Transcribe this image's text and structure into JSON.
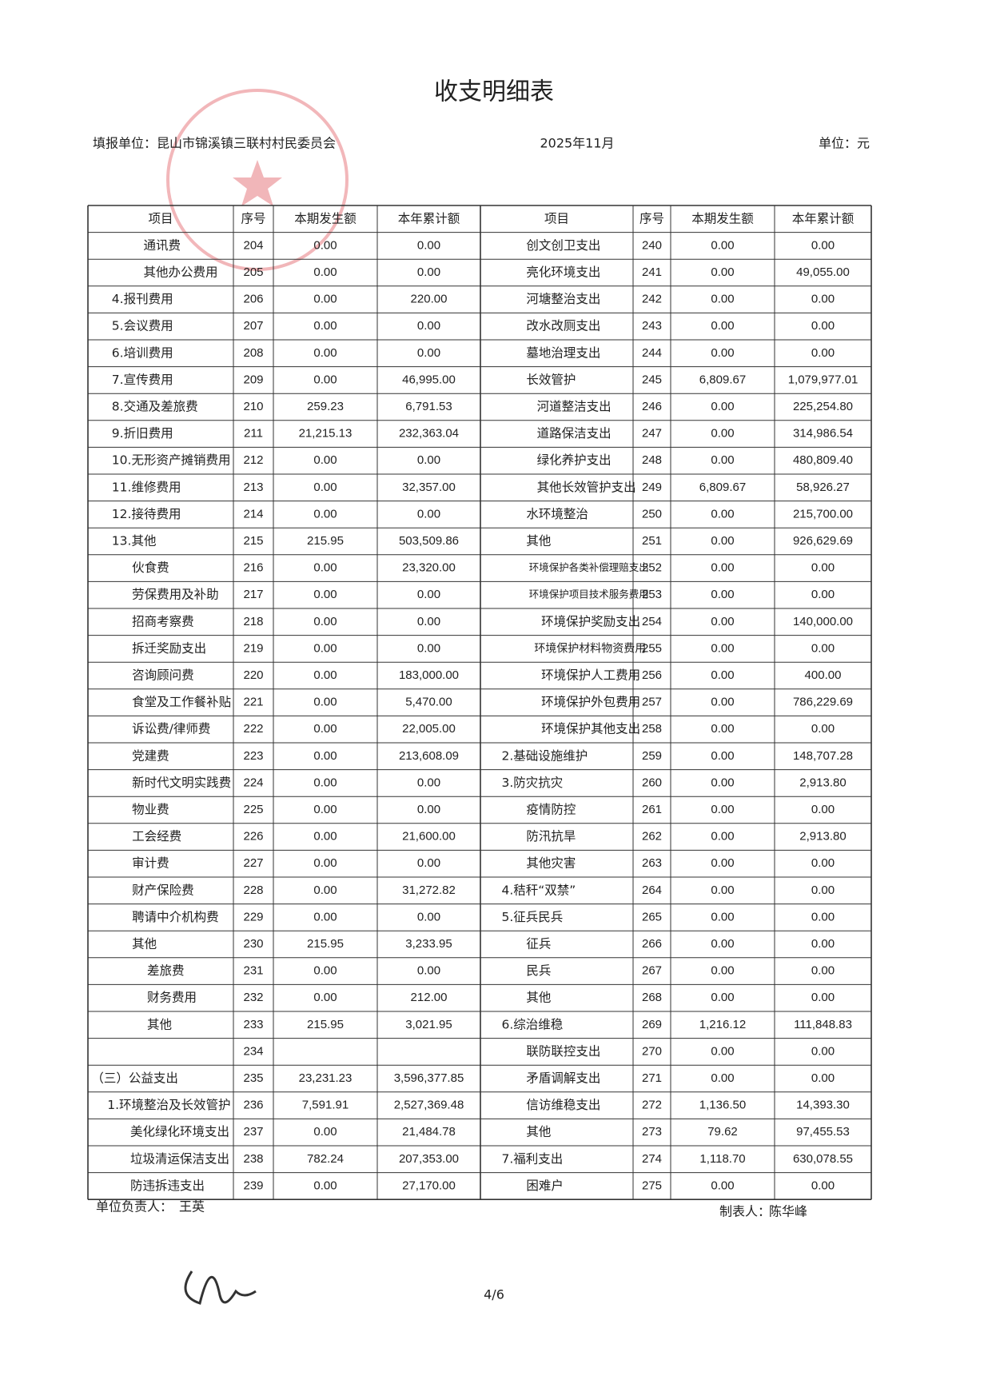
{
  "header": {
    "title": "收支明细表",
    "unit_name": "填报单位：昆山市锦溪镇三联村村民委员会",
    "period": "2025年11月",
    "currency": "单位：元"
  },
  "table": {
    "headers": [
      "项目",
      "序号",
      "本期发生额",
      "本年累计额",
      "项目",
      "序号",
      "本期发生额",
      "本年累计额"
    ],
    "rows": [
      [
        "通讯费",
        204,
        "0.00",
        "0.00",
        "创文创卫支出",
        240,
        "0.00",
        "0.00"
      ],
      [
        "其他办公费用",
        205,
        "0.00",
        "0.00",
        "亮化环境支出",
        241,
        "0.00",
        "49,055.00"
      ],
      [
        "4.报刊费用",
        206,
        "0.00",
        "220.00",
        "河塘整治支出",
        242,
        "0.00",
        "0.00"
      ],
      [
        "5.会议费用",
        207,
        "0.00",
        "0.00",
        "改水改厕支出",
        243,
        "0.00",
        "0.00"
      ],
      [
        "6.培训费用",
        208,
        "0.00",
        "0.00",
        "墓地治理支出",
        244,
        "0.00",
        "0.00"
      ],
      [
        "7.宣传费用",
        209,
        "0.00",
        "46,995.00",
        "长效管护",
        245,
        "6,809.67",
        "1,079,977.01"
      ],
      [
        "8.交通及差旅费",
        210,
        "259.23",
        "6,791.53",
        "河道整洁支出",
        246,
        "0.00",
        "225,254.80"
      ],
      [
        "9.折旧费用",
        211,
        "21,215.13",
        "232,363.04",
        "道路保洁支出",
        247,
        "0.00",
        "314,986.54"
      ],
      [
        "10.无形资产摊销费用",
        212,
        "0.00",
        "0.00",
        "绿化养护支出",
        248,
        "0.00",
        "480,809.40"
      ],
      [
        "11.维修费用",
        213,
        "0.00",
        "32,357.00",
        "其他长效管护支出",
        249,
        "6,809.67",
        "58,926.27"
      ],
      [
        "12.接待费用",
        214,
        "0.00",
        "0.00",
        "水环境整治",
        250,
        "0.00",
        "215,700.00"
      ],
      [
        "13.其他",
        215,
        "215.95",
        "503,509.86",
        "其他",
        251,
        "0.00",
        "926,629.69"
      ],
      [
        "伙食费",
        216,
        "0.00",
        "23,320.00",
        "环境保护各类补偿理赔支出",
        252,
        "0.00",
        "0.00"
      ],
      [
        "劳保费用及补助",
        217,
        "0.00",
        "0.00",
        "环境保护项目技术服务费用",
        253,
        "0.00",
        "0.00"
      ],
      [
        "招商考察费",
        218,
        "0.00",
        "0.00",
        "环境保护奖励支出",
        254,
        "0.00",
        "140,000.00"
      ],
      [
        "拆迁奖励支出",
        219,
        "0.00",
        "0.00",
        "环境保护材料物资费用",
        255,
        "0.00",
        "0.00"
      ],
      [
        "咨询顾问费",
        220,
        "0.00",
        "183,000.00",
        "环境保护人工费用",
        256,
        "0.00",
        "400.00"
      ],
      [
        "食堂及工作餐补贴",
        221,
        "0.00",
        "5,470.00",
        "环境保护外包费用",
        257,
        "0.00",
        "786,229.69"
      ],
      [
        "诉讼费/律师费",
        222,
        "0.00",
        "22,005.00",
        "环境保护其他支出",
        258,
        "0.00",
        "0.00"
      ],
      [
        "党建费",
        223,
        "0.00",
        "213,608.09",
        "2.基础设施维护",
        259,
        "0.00",
        "148,707.28"
      ],
      [
        "新时代文明实践费",
        224,
        "0.00",
        "0.00",
        "3.防灾抗灾",
        260,
        "0.00",
        "2,913.80"
      ],
      [
        "物业费",
        225,
        "0.00",
        "0.00",
        "疫情防控",
        261,
        "0.00",
        "0.00"
      ],
      [
        "工会经费",
        226,
        "0.00",
        "21,600.00",
        "防汛抗旱",
        262,
        "0.00",
        "2,913.80"
      ],
      [
        "审计费",
        227,
        "0.00",
        "0.00",
        "其他灾害",
        263,
        "0.00",
        "0.00"
      ],
      [
        "财产保险费",
        228,
        "0.00",
        "31,272.82",
        "4.秸秆“双禁”",
        264,
        "0.00",
        "0.00"
      ],
      [
        "聘请中介机构费",
        229,
        "0.00",
        "0.00",
        "5.征兵民兵",
        265,
        "0.00",
        "0.00"
      ],
      [
        "其他",
        230,
        "215.95",
        "3,233.95",
        "征兵",
        266,
        "0.00",
        "0.00"
      ],
      [
        "差旅费",
        231,
        "0.00",
        "0.00",
        "民兵",
        267,
        "0.00",
        "0.00"
      ],
      [
        "财务费用",
        232,
        "0.00",
        "212.00",
        "其他",
        268,
        "0.00",
        "0.00"
      ],
      [
        "其他",
        233,
        "215.95",
        "3,021.95",
        "6.综治维稳",
        269,
        "1,216.12",
        "111,848.83"
      ],
      [
        null,
        234,
        null,
        null,
        "联防联控支出",
        270,
        "0.00",
        "0.00"
      ],
      [
        "（三）公益支出",
        235,
        "23,231.23",
        "3,596,377.85",
        "矛盾调解支出",
        271,
        "0.00",
        "0.00"
      ],
      [
        "1.环境整治及长效管护",
        236,
        "7,591.91",
        "2,527,369.48",
        "信访维稳支出",
        272,
        "1,136.50",
        "14,393.30"
      ],
      [
        "美化绿化环境支出",
        237,
        "0.00",
        "21,484.78",
        "其他",
        273,
        "79.62",
        "97,455.53"
      ],
      [
        "垃圾清运保洁支出",
        238,
        "782.24",
        "207,353.00",
        "7.福利支出",
        274,
        "1,118.70",
        "630,078.55"
      ],
      [
        "防违拆违支出",
        239,
        "0.00",
        "27,170.00",
        "困难户",
        275,
        "0.00",
        "0.00"
      ]
    ]
  },
  "footer": {
    "leader_label": "单位负责人：",
    "leader": "王英",
    "preparer_label": "制表人：",
    "preparer": "陈华峰",
    "page": "4/6"
  }
}
